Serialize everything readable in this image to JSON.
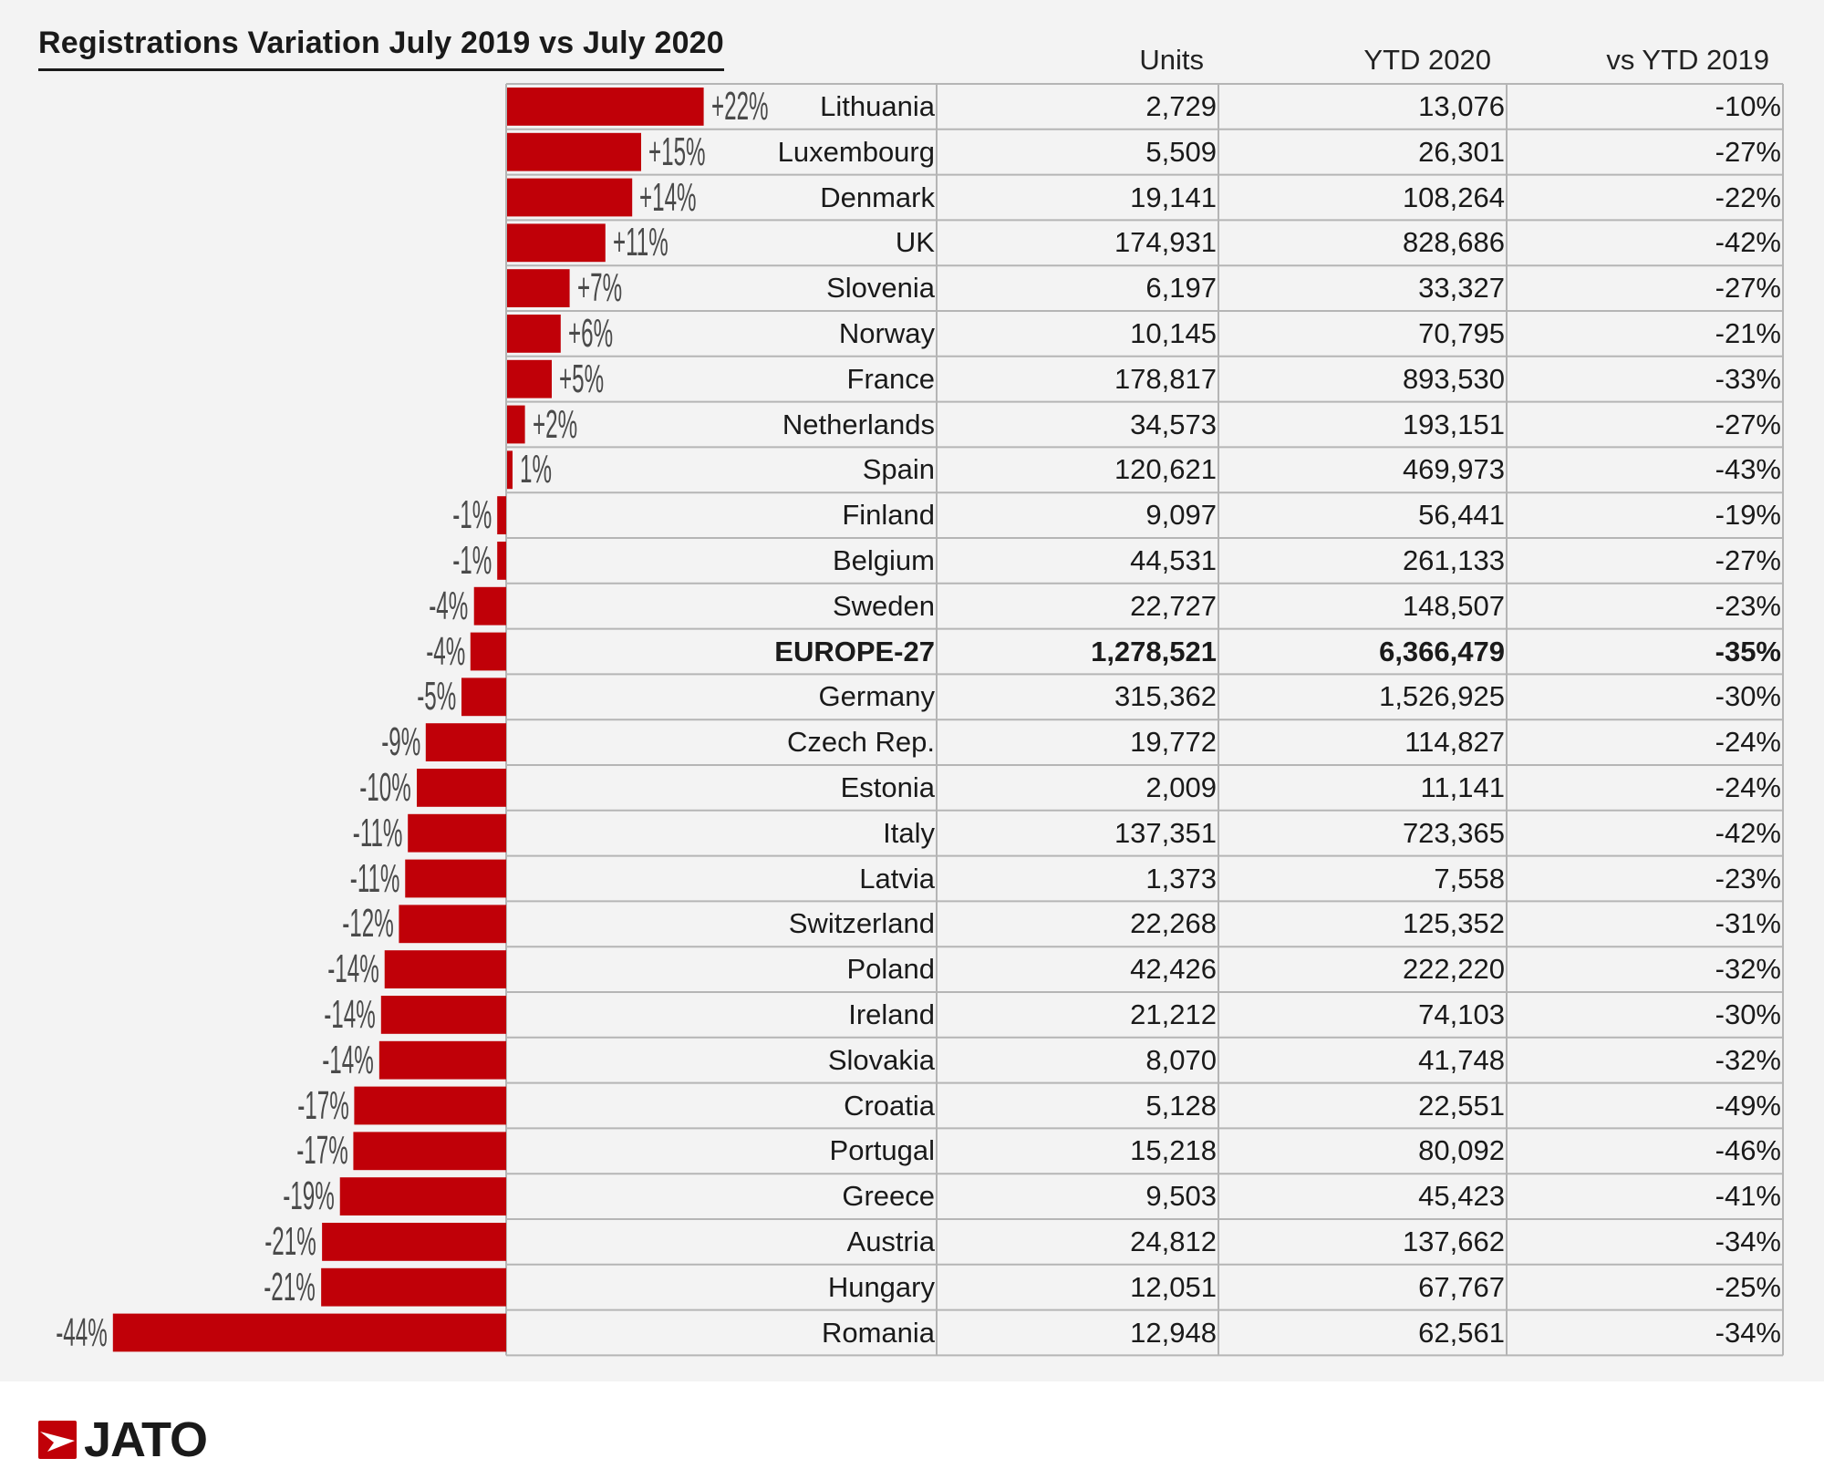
{
  "chart_data": {
    "type": "bar",
    "orientation": "horizontal",
    "title": "Registrations Variation July 2019 vs July 2020",
    "bar_color": "#c00008",
    "columns": [
      "Units",
      "YTD 2020",
      "vs YTD 2019"
    ],
    "rows": [
      {
        "country": "Lithuania",
        "variation": 22,
        "label": "+22%",
        "units": "2,729",
        "ytd2020": "13,076",
        "vs_ytd2019": "-10%"
      },
      {
        "country": "Luxembourg",
        "variation": 15,
        "label": "+15%",
        "units": "5,509",
        "ytd2020": "26,301",
        "vs_ytd2019": "-27%"
      },
      {
        "country": "Denmark",
        "variation": 14,
        "label": "+14%",
        "units": "19,141",
        "ytd2020": "108,264",
        "vs_ytd2019": "-22%"
      },
      {
        "country": "UK",
        "variation": 11,
        "label": "+11%",
        "units": "174,931",
        "ytd2020": "828,686",
        "vs_ytd2019": "-42%"
      },
      {
        "country": "Slovenia",
        "variation": 7,
        "label": "+7%",
        "units": "6,197",
        "ytd2020": "33,327",
        "vs_ytd2019": "-27%"
      },
      {
        "country": "Norway",
        "variation": 6,
        "label": "+6%",
        "units": "10,145",
        "ytd2020": "70,795",
        "vs_ytd2019": "-21%"
      },
      {
        "country": "France",
        "variation": 5,
        "label": "+5%",
        "units": "178,817",
        "ytd2020": "893,530",
        "vs_ytd2019": "-33%"
      },
      {
        "country": "Netherlands",
        "variation": 2,
        "label": "+2%",
        "units": "34,573",
        "ytd2020": "193,151",
        "vs_ytd2019": "-27%"
      },
      {
        "country": "Spain",
        "variation": 0.6,
        "label": "1%",
        "units": "120,621",
        "ytd2020": "469,973",
        "vs_ytd2019": "-43%"
      },
      {
        "country": "Finland",
        "variation": -1,
        "label": "-1%",
        "units": "9,097",
        "ytd2020": "56,441",
        "vs_ytd2019": "-19%"
      },
      {
        "country": "Belgium",
        "variation": -1,
        "label": "-1%",
        "units": "44,531",
        "ytd2020": "261,133",
        "vs_ytd2019": "-27%"
      },
      {
        "country": "Sweden",
        "variation": -3.6,
        "label": "-4%",
        "units": "22,727",
        "ytd2020": "148,507",
        "vs_ytd2019": "-23%"
      },
      {
        "country": "EUROPE-27",
        "variation": -4,
        "label": "-4%",
        "units": "1,278,521",
        "ytd2020": "6,366,479",
        "vs_ytd2019": "-35%",
        "bold": true
      },
      {
        "country": "Germany",
        "variation": -5,
        "label": "-5%",
        "units": "315,362",
        "ytd2020": "1,526,925",
        "vs_ytd2019": "-30%"
      },
      {
        "country": "Czech Rep.",
        "variation": -9,
        "label": "-9%",
        "units": "19,772",
        "ytd2020": "114,827",
        "vs_ytd2019": "-24%"
      },
      {
        "country": "Estonia",
        "variation": -10,
        "label": "-10%",
        "units": "2,009",
        "ytd2020": "11,141",
        "vs_ytd2019": "-24%"
      },
      {
        "country": "Italy",
        "variation": -11,
        "label": "-11%",
        "units": "137,351",
        "ytd2020": "723,365",
        "vs_ytd2019": "-42%"
      },
      {
        "country": "Latvia",
        "variation": -11.3,
        "label": "-11%",
        "units": "1,373",
        "ytd2020": "7,558",
        "vs_ytd2019": "-23%"
      },
      {
        "country": "Switzerland",
        "variation": -12,
        "label": "-12%",
        "units": "22,268",
        "ytd2020": "125,352",
        "vs_ytd2019": "-31%"
      },
      {
        "country": "Poland",
        "variation": -13.6,
        "label": "-14%",
        "units": "42,426",
        "ytd2020": "222,220",
        "vs_ytd2019": "-32%"
      },
      {
        "country": "Ireland",
        "variation": -14,
        "label": "-14%",
        "units": "21,212",
        "ytd2020": "74,103",
        "vs_ytd2019": "-30%"
      },
      {
        "country": "Slovakia",
        "variation": -14.2,
        "label": "-14%",
        "units": "8,070",
        "ytd2020": "41,748",
        "vs_ytd2019": "-32%"
      },
      {
        "country": "Croatia",
        "variation": -17,
        "label": "-17%",
        "units": "5,128",
        "ytd2020": "22,551",
        "vs_ytd2019": "-49%"
      },
      {
        "country": "Portugal",
        "variation": -17.1,
        "label": "-17%",
        "units": "15,218",
        "ytd2020": "80,092",
        "vs_ytd2019": "-46%"
      },
      {
        "country": "Greece",
        "variation": -18.6,
        "label": "-19%",
        "units": "9,503",
        "ytd2020": "45,423",
        "vs_ytd2019": "-41%"
      },
      {
        "country": "Austria",
        "variation": -20.6,
        "label": "-21%",
        "units": "24,812",
        "ytd2020": "137,662",
        "vs_ytd2019": "-34%"
      },
      {
        "country": "Hungary",
        "variation": -20.7,
        "label": "-21%",
        "units": "12,051",
        "ytd2020": "67,767",
        "vs_ytd2019": "-25%"
      },
      {
        "country": "Romania",
        "variation": -44,
        "label": "-44%",
        "units": "12,948",
        "ytd2020": "62,561",
        "vs_ytd2019": "-34%"
      }
    ]
  },
  "logo": {
    "text": "JATO",
    "color": "#c00008"
  }
}
